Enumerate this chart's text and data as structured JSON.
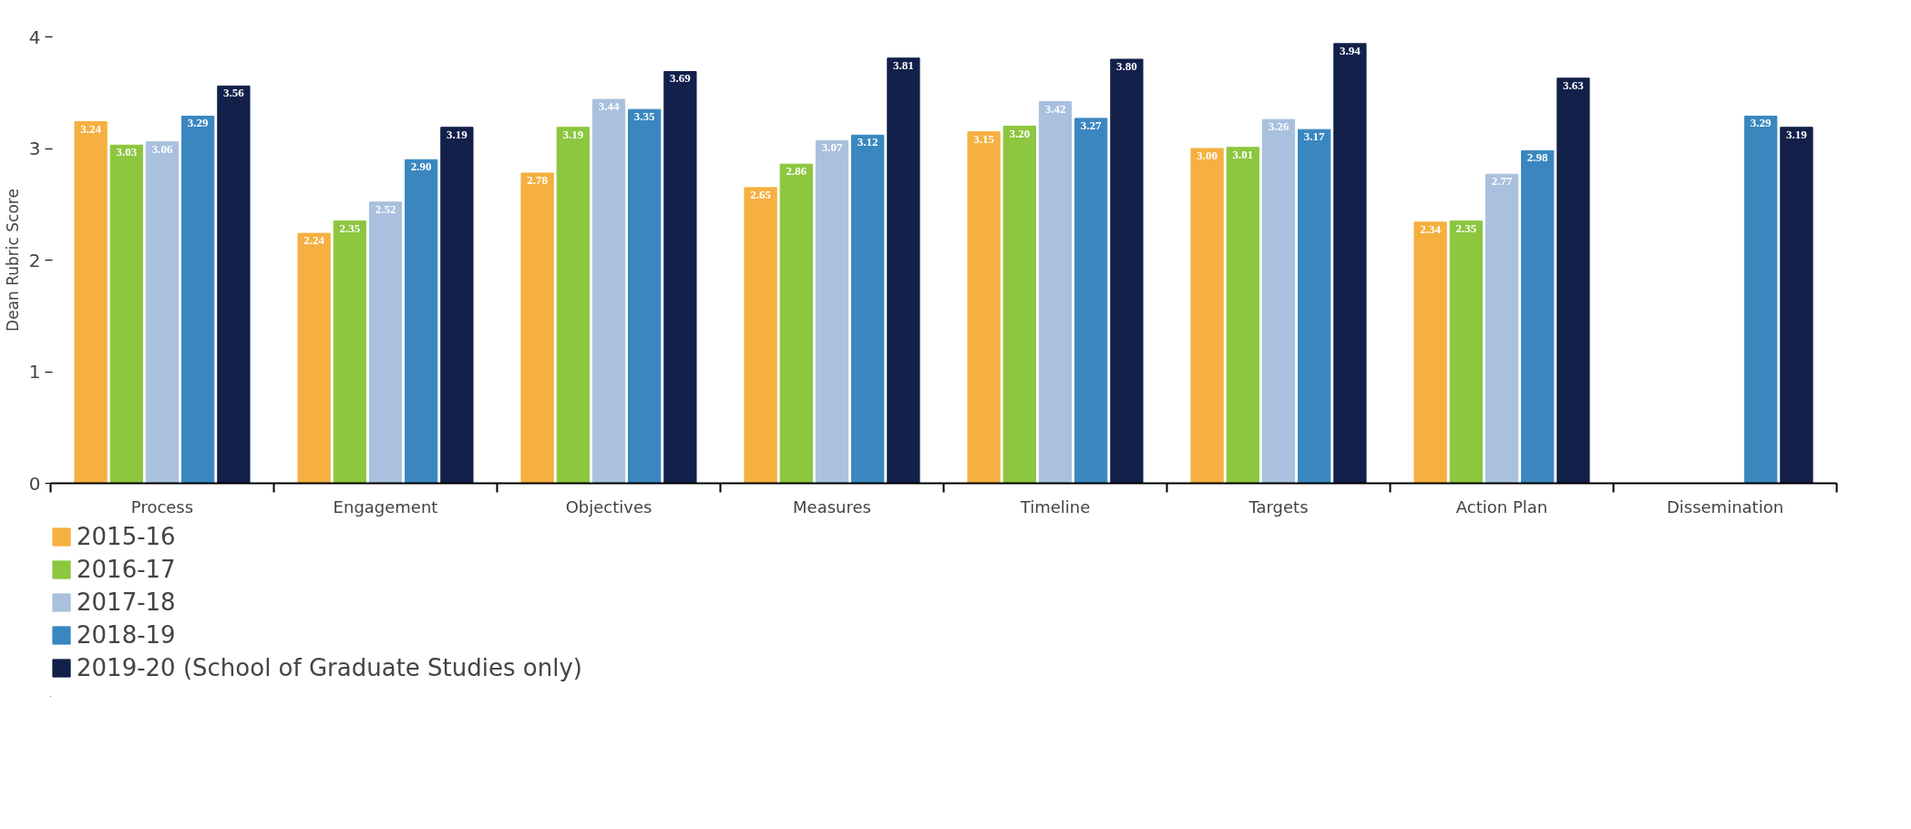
{
  "chart_data": {
    "type": "bar",
    "ylabel": "Dean Rubric Score",
    "categories": [
      "Process",
      "Engagement",
      "Objectives",
      "Measures",
      "Timeline",
      "Targets",
      "Action Plan",
      "Dissemination"
    ],
    "series": [
      {
        "name": "2015-16",
        "color": "#f5b041",
        "values": [
          3.24,
          2.24,
          2.78,
          2.65,
          3.15,
          3.0,
          2.34,
          null
        ],
        "value_labels": [
          "3.24",
          "2.24",
          "2.78",
          "2.65",
          "3.15",
          "3.00",
          "2.34",
          null
        ]
      },
      {
        "name": "2016-17",
        "color": "#8dc63f",
        "values": [
          3.03,
          2.35,
          3.19,
          2.86,
          3.2,
          3.01,
          2.35,
          null
        ],
        "value_labels": [
          "3.03",
          "2.35",
          "3.19",
          "2.86",
          "3.20",
          "3.01",
          "2.35",
          null
        ]
      },
      {
        "name": "2017-18",
        "color": "#a9c0de",
        "values": [
          3.06,
          2.52,
          3.44,
          3.07,
          3.42,
          3.26,
          2.77,
          null
        ],
        "value_labels": [
          "3.06",
          "2.52",
          "3.44",
          "3.07",
          "3.42",
          "3.26",
          "2.77",
          null
        ]
      },
      {
        "name": "2018-19",
        "color": "#3a87c0",
        "values": [
          3.29,
          2.9,
          3.35,
          3.12,
          3.27,
          3.17,
          2.98,
          3.29
        ],
        "value_labels": [
          "3.29",
          "2.90",
          "3.35",
          "3.12",
          "3.27",
          "3.17",
          "2.98",
          "3.29"
        ]
      },
      {
        "name": "2019-20 (School of Graduate Studies only)",
        "color": "#12204a",
        "values": [
          3.56,
          3.19,
          3.69,
          3.81,
          3.8,
          3.94,
          3.63,
          3.19
        ],
        "value_labels": [
          "3.56",
          "3.19",
          "3.69",
          "3.81",
          "3.80",
          "3.94",
          "3.63",
          "3.19"
        ]
      }
    ],
    "ylim": [
      0,
      4
    ],
    "yticks": [
      0,
      1,
      2,
      3,
      4
    ],
    "legend": "bottom"
  }
}
